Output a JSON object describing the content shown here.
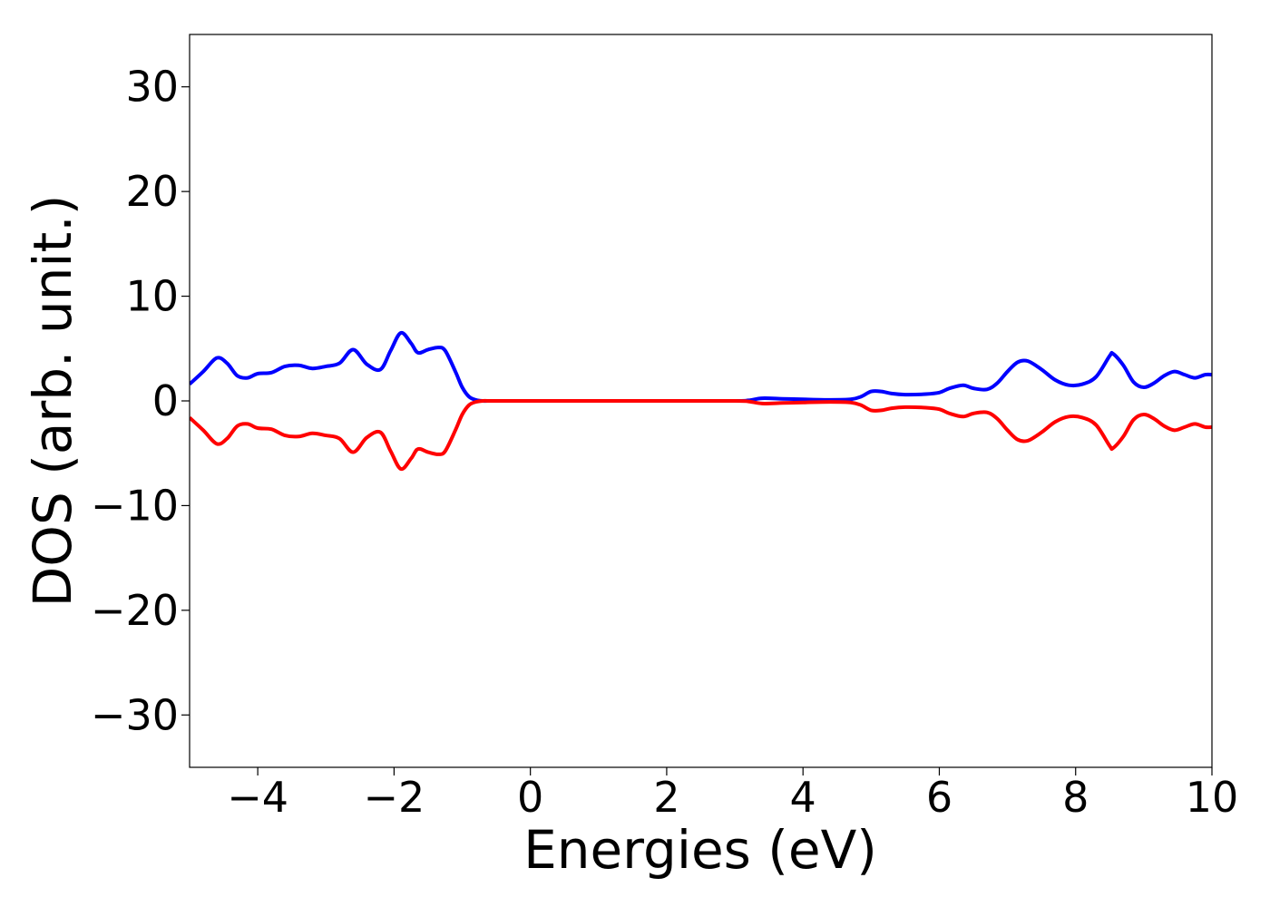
{
  "chart_data": {
    "type": "line",
    "title": "",
    "xlabel": "Energies (eV)",
    "ylabel": "DOS (arb. unit.)",
    "xlim": [
      -5,
      10
    ],
    "ylim": [
      -35,
      35
    ],
    "xticks": [
      -4,
      -2,
      0,
      2,
      4,
      6,
      8,
      10
    ],
    "yticks": [
      -30,
      -20,
      -10,
      0,
      10,
      20,
      30
    ],
    "xtick_labels": [
      "−4",
      "−2",
      "0",
      "2",
      "4",
      "6",
      "8",
      "10"
    ],
    "ytick_labels": [
      "−30",
      "−20",
      "−10",
      "0",
      "10",
      "20",
      "30"
    ],
    "grid": false,
    "legend": "none",
    "series": [
      {
        "color": "#0000ff",
        "x": [
          -5.0,
          -4.8,
          -4.6,
          -4.45,
          -4.3,
          -4.15,
          -4.0,
          -3.8,
          -3.6,
          -3.4,
          -3.2,
          -3.0,
          -2.8,
          -2.6,
          -2.4,
          -2.2,
          -2.05,
          -1.9,
          -1.75,
          -1.65,
          -1.5,
          -1.35,
          -1.25,
          -1.1,
          -1.0,
          -0.9,
          -0.8,
          -0.7,
          -0.6,
          -0.5,
          0.0,
          1.0,
          2.0,
          3.0,
          3.2,
          3.4,
          3.7,
          4.0,
          4.4,
          4.7,
          4.85,
          5.0,
          5.15,
          5.3,
          5.5,
          5.8,
          6.0,
          6.15,
          6.35,
          6.5,
          6.7,
          6.85,
          7.0,
          7.15,
          7.3,
          7.5,
          7.7,
          7.9,
          8.1,
          8.3,
          8.5,
          8.55,
          8.7,
          8.85,
          9.0,
          9.15,
          9.3,
          9.45,
          9.6,
          9.75,
          9.9,
          10.0
        ],
        "values": [
          1.6,
          2.8,
          4.1,
          3.6,
          2.4,
          2.2,
          2.6,
          2.7,
          3.3,
          3.4,
          3.1,
          3.3,
          3.6,
          4.9,
          3.5,
          3.0,
          4.8,
          6.5,
          5.5,
          4.6,
          4.9,
          5.1,
          4.8,
          2.8,
          1.3,
          0.4,
          0.1,
          0.0,
          0.0,
          0.0,
          0.0,
          0.0,
          0.0,
          0.0,
          0.05,
          0.25,
          0.2,
          0.15,
          0.1,
          0.15,
          0.4,
          0.9,
          0.9,
          0.7,
          0.6,
          0.65,
          0.8,
          1.2,
          1.5,
          1.2,
          1.1,
          1.7,
          2.8,
          3.7,
          3.8,
          3.0,
          2.0,
          1.5,
          1.6,
          2.3,
          4.3,
          4.5,
          3.4,
          1.8,
          1.3,
          1.7,
          2.4,
          2.8,
          2.5,
          2.2,
          2.5,
          2.5
        ]
      },
      {
        "color": "#ff0000",
        "x": [
          -5.0,
          -4.8,
          -4.6,
          -4.45,
          -4.3,
          -4.15,
          -4.0,
          -3.8,
          -3.6,
          -3.4,
          -3.2,
          -3.0,
          -2.8,
          -2.6,
          -2.4,
          -2.2,
          -2.05,
          -1.9,
          -1.75,
          -1.65,
          -1.5,
          -1.35,
          -1.25,
          -1.1,
          -1.0,
          -0.9,
          -0.8,
          -0.7,
          -0.6,
          -0.5,
          0.0,
          1.0,
          2.0,
          3.0,
          3.2,
          3.4,
          3.7,
          4.0,
          4.4,
          4.7,
          4.85,
          5.0,
          5.15,
          5.3,
          5.5,
          5.8,
          6.0,
          6.15,
          6.35,
          6.5,
          6.7,
          6.85,
          7.0,
          7.15,
          7.3,
          7.5,
          7.7,
          7.9,
          8.1,
          8.3,
          8.5,
          8.55,
          8.7,
          8.85,
          9.0,
          9.15,
          9.3,
          9.45,
          9.6,
          9.75,
          9.9,
          10.0
        ],
        "values": [
          -1.6,
          -2.8,
          -4.1,
          -3.6,
          -2.4,
          -2.2,
          -2.6,
          -2.7,
          -3.3,
          -3.4,
          -3.1,
          -3.3,
          -3.6,
          -4.9,
          -3.5,
          -3.0,
          -4.8,
          -6.5,
          -5.5,
          -4.6,
          -4.9,
          -5.1,
          -4.8,
          -2.8,
          -1.3,
          -0.4,
          -0.1,
          0.0,
          0.0,
          0.0,
          0.0,
          0.0,
          0.0,
          0.0,
          -0.05,
          -0.25,
          -0.2,
          -0.15,
          -0.1,
          -0.15,
          -0.4,
          -0.9,
          -0.9,
          -0.7,
          -0.6,
          -0.65,
          -0.8,
          -1.2,
          -1.5,
          -1.2,
          -1.1,
          -1.7,
          -2.8,
          -3.7,
          -3.8,
          -3.0,
          -2.0,
          -1.5,
          -1.6,
          -2.3,
          -4.3,
          -4.5,
          -3.4,
          -1.8,
          -1.3,
          -1.7,
          -2.4,
          -2.8,
          -2.5,
          -2.2,
          -2.5,
          -2.5
        ]
      }
    ]
  }
}
